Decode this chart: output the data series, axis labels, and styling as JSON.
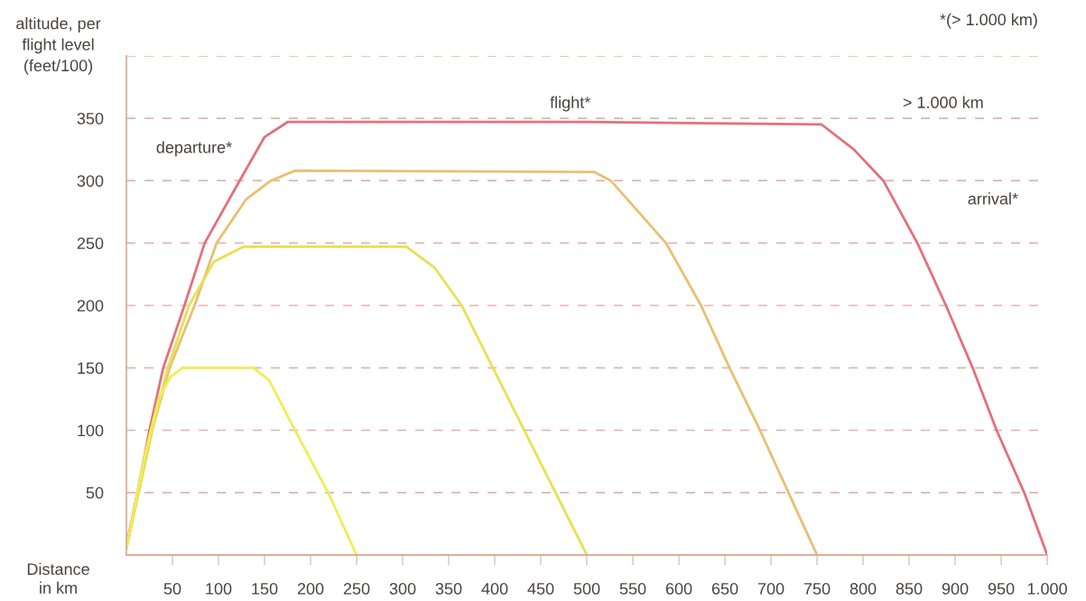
{
  "chart_data": {
    "type": "line",
    "ylabel": "altitude, per\nflight level\n(feet/100)",
    "xlabel": "Distance\nin km",
    "xlim": [
      0,
      1000
    ],
    "ylim": [
      0,
      400
    ],
    "xticks": [
      50,
      100,
      150,
      200,
      250,
      300,
      350,
      400,
      450,
      500,
      550,
      600,
      650,
      700,
      750,
      800,
      850,
      900,
      950,
      {
        "value": 1000,
        "label": "1.000"
      }
    ],
    "yticks": [
      50,
      100,
      150,
      200,
      250,
      300,
      350,
      {
        "value": 400,
        "label": null
      }
    ],
    "grid": "y",
    "legend": false,
    "marker": "none",
    "line_style": "solid",
    "series": [
      {
        "color": "#e4707a",
        "x": [
          0,
          12,
          25,
          40,
          63,
          85,
          123,
          150,
          175,
          500,
          755,
          790,
          822,
          859,
          890,
          919,
          945,
          975,
          1000
        ],
        "values": [
          7,
          50,
          100,
          150,
          200,
          250,
          300,
          335,
          347,
          347,
          345,
          325,
          300,
          250,
          200,
          150,
          100,
          50,
          0
        ]
      },
      {
        "color": "#e8c070",
        "x": [
          0,
          28,
          47,
          74,
          98,
          130,
          157,
          183,
          508,
          526,
          586,
          624,
          655,
          688,
          719,
          750
        ],
        "values": [
          5,
          100,
          150,
          200,
          250,
          285,
          300,
          308,
          307,
          300,
          250,
          200,
          150,
          100,
          50,
          0
        ]
      },
      {
        "color": "#e8e050",
        "x": [
          0,
          28,
          45,
          68,
          95,
          127,
          304,
          335,
          364,
          398,
          432,
          466,
          500
        ],
        "values": [
          5,
          100,
          150,
          200,
          235,
          247,
          247,
          230,
          200,
          150,
          100,
          50,
          0
        ]
      },
      {
        "color": "#eeee55",
        "x": [
          0,
          20,
          35,
          48,
          61,
          138,
          155,
          183,
          219,
          250
        ],
        "values": [
          5,
          80,
          125,
          143,
          150,
          150,
          140,
          100,
          50,
          0
        ]
      }
    ],
    "annotations": [
      "departure*",
      "flight*",
      "> 1.000 km",
      "arrival*",
      "*(> 1.000 km)"
    ]
  }
}
